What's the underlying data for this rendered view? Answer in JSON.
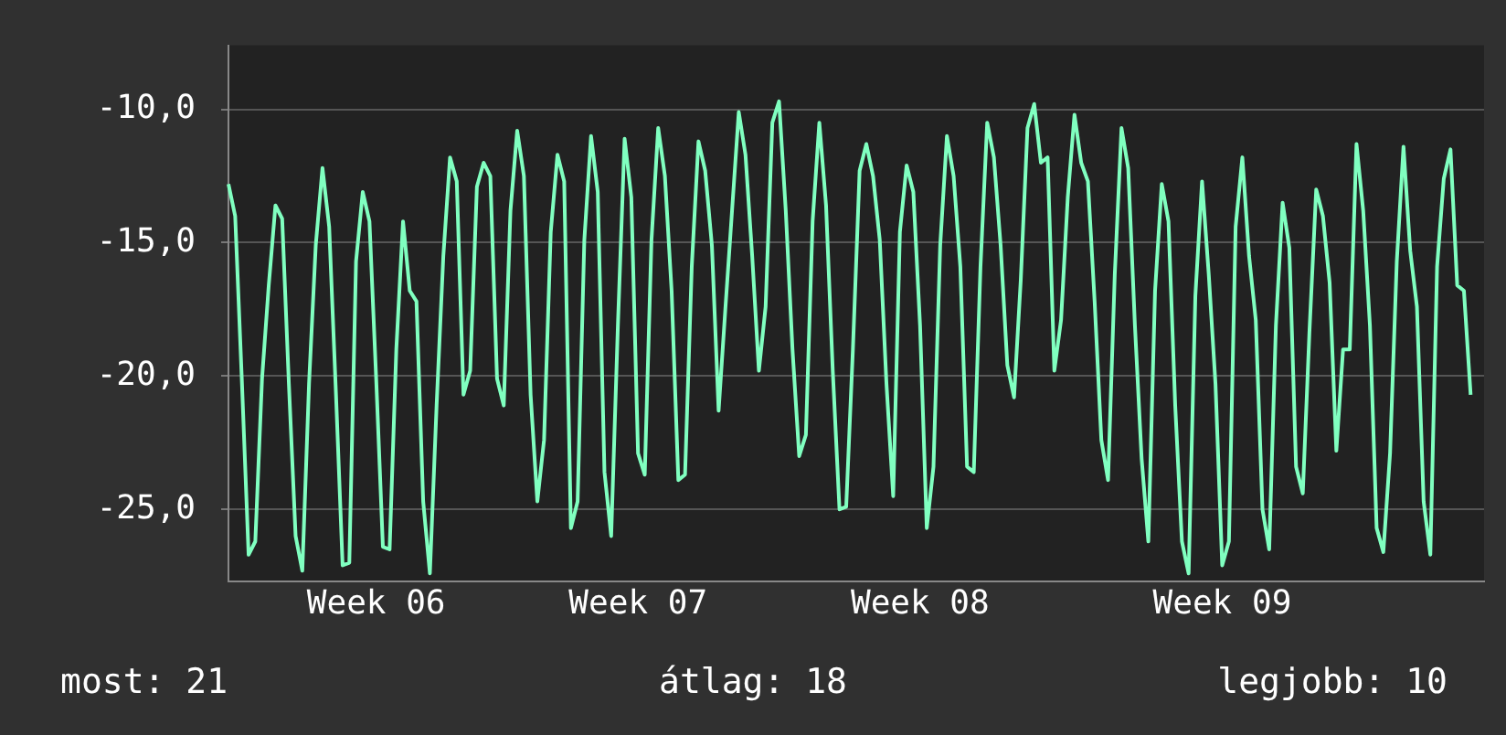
{
  "chart_data": {
    "type": "line",
    "annotations": [
      "most: 21",
      "átlag: 18",
      "legjobb: 10"
    ],
    "categories": [
      null,
      null,
      null,
      null,
      null,
      null,
      null,
      null,
      null,
      null,
      null,
      null,
      null,
      null,
      null,
      null,
      null,
      null,
      null,
      null,
      null,
      null,
      "Week 06",
      null,
      null,
      null,
      null,
      null,
      null,
      null,
      null,
      null,
      null,
      null,
      null,
      null,
      null,
      null,
      null,
      null,
      null,
      null,
      null,
      null,
      null,
      null,
      null,
      null,
      null,
      null,
      null,
      null,
      null,
      null,
      null,
      null,
      null,
      null,
      null,
      null,
      null,
      "Week 07",
      null,
      null,
      null,
      null,
      null,
      null,
      null,
      null,
      null,
      null,
      null,
      null,
      null,
      null,
      null,
      null,
      null,
      null,
      null,
      null,
      null,
      null,
      null,
      null,
      null,
      null,
      null,
      null,
      null,
      null,
      null,
      null,
      null,
      null,
      null,
      null,
      null,
      null,
      null,
      null,
      null,
      "Week 08",
      null,
      null,
      null,
      null,
      null,
      null,
      null,
      null,
      null,
      null,
      null,
      null,
      null,
      null,
      null,
      null,
      null,
      null,
      null,
      null,
      null,
      null,
      null,
      null,
      null,
      null,
      null,
      null,
      null,
      null,
      null,
      null,
      null,
      null,
      null,
      null,
      null,
      null,
      null,
      null,
      null,
      null,
      null,
      null,
      "Week 09",
      null,
      null,
      null,
      null,
      null,
      null,
      null,
      null,
      null,
      null,
      null,
      null,
      null,
      null,
      null,
      null,
      null,
      null,
      null,
      null,
      null,
      null,
      null,
      null,
      null,
      null,
      null,
      null,
      null,
      null,
      null,
      null,
      null,
      null,
      null,
      null,
      null,
      null,
      null
    ],
    "series": [
      {
        "color": "#80ffc0",
        "values": [
          -12.8,
          -14.0,
          -20.2,
          -26.7,
          -26.2,
          -20.1,
          -16.6,
          -13.6,
          -14.1,
          -20.3,
          -26.0,
          -27.3,
          -20.3,
          -15.1,
          -12.2,
          -14.4,
          -20.6,
          -27.1,
          -27.0,
          -15.7,
          -13.1,
          -14.2,
          -20.1,
          -26.4,
          -26.5,
          -19.0,
          -14.2,
          -16.8,
          -17.2,
          -24.7,
          -27.4,
          -21.1,
          -15.5,
          -11.8,
          -12.7,
          -20.7,
          -19.8,
          -12.9,
          -12.0,
          -12.5,
          -20.1,
          -21.1,
          -13.8,
          -10.8,
          -12.5,
          -20.7,
          -24.7,
          -22.4,
          -14.6,
          -11.7,
          -12.7,
          -25.7,
          -24.7,
          -14.9,
          -11.0,
          -13.1,
          -23.6,
          -26.0,
          -18.1,
          -11.1,
          -13.3,
          -22.9,
          -23.7,
          -14.9,
          -10.7,
          -12.5,
          -16.8,
          -23.9,
          -23.7,
          -15.9,
          -11.2,
          -12.3,
          -15.1,
          -21.3,
          -17.5,
          -13.8,
          -10.1,
          -11.7,
          -15.5,
          -19.8,
          -17.4,
          -10.5,
          -9.7,
          -13.8,
          -19.0,
          -23.0,
          -22.2,
          -14.2,
          -10.5,
          -13.6,
          -19.8,
          -25.0,
          -24.9,
          -19.0,
          -12.3,
          -11.3,
          -12.5,
          -14.9,
          -20.3,
          -24.5,
          -14.6,
          -12.1,
          -13.1,
          -18.1,
          -25.7,
          -23.4,
          -15.1,
          -11.0,
          -12.5,
          -15.9,
          -23.4,
          -23.6,
          -15.9,
          -10.5,
          -11.8,
          -15.1,
          -19.6,
          -20.8,
          -16.4,
          -10.7,
          -9.8,
          -12.0,
          -11.8,
          -19.8,
          -17.9,
          -13.3,
          -10.2,
          -12.0,
          -12.7,
          -17.2,
          -22.4,
          -23.9,
          -16.2,
          -10.7,
          -12.2,
          -18.1,
          -23.1,
          -26.2,
          -16.8,
          -12.8,
          -14.2,
          -21.1,
          -26.2,
          -27.4,
          -17.0,
          -12.7,
          -16.2,
          -20.3,
          -27.1,
          -26.2,
          -14.4,
          -11.8,
          -15.5,
          -17.9,
          -25.0,
          -26.5,
          -18.1,
          -13.5,
          -15.2,
          -23.4,
          -24.4,
          -18.3,
          -13.0,
          -14.0,
          -16.5,
          -22.8,
          -19.0,
          -19.0,
          -11.3,
          -13.8,
          -18.1,
          -25.7,
          -26.6,
          -22.9,
          -15.7,
          -11.4,
          -15.3,
          -17.4,
          -24.7,
          -26.7,
          -15.9,
          -12.6,
          -11.5,
          -16.6,
          -16.8,
          -20.7,
          null,
          null
        ]
      }
    ],
    "ylim": [
      -27.7,
      -7.6
    ],
    "yticks": [
      {
        "value": -10,
        "label": "-10,0"
      },
      {
        "value": -15,
        "label": "-15,0"
      },
      {
        "value": -20,
        "label": "-20,0"
      },
      {
        "value": -25,
        "label": "-25,0"
      }
    ],
    "grid": "y",
    "legend": false,
    "marker": "none",
    "line_style": "solid"
  }
}
